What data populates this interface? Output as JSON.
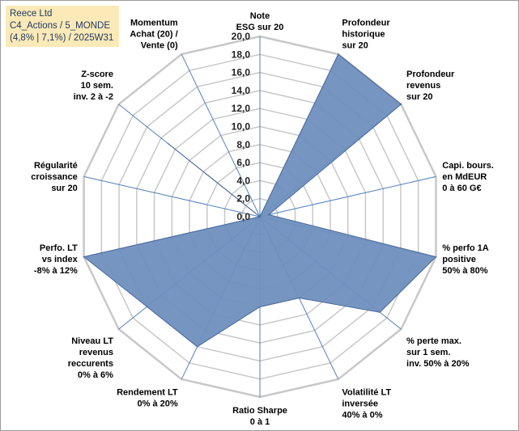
{
  "title": {
    "line1": "Reece Ltd",
    "line2": "C4_Actions / 5_MONDE",
    "line3": "(4,8% | 7,1%) / 2025W31"
  },
  "chart_data": {
    "type": "radar",
    "rmin": 0,
    "rmax": 20,
    "tick_step": 2,
    "tick_labels": [
      "0,0",
      "2,0",
      "4,0",
      "6,0",
      "8,0",
      "10,0",
      "12,0",
      "14,0",
      "16,0",
      "18,0",
      "20,0"
    ],
    "axes": [
      {
        "label": [
          "Note",
          "ESG sur 20"
        ],
        "value": 0
      },
      {
        "label": [
          "Profondeur",
          "historique",
          "sur 20"
        ],
        "value": 20
      },
      {
        "label": [
          "Profondeur",
          "revenus",
          "sur 20"
        ],
        "value": 20
      },
      {
        "label": [
          "Capi. bours.",
          "en MdEUR",
          "0 à 60 G€"
        ],
        "value": 1
      },
      {
        "label": [
          "% perfo 1A",
          "positive",
          "50% à 80%"
        ],
        "value": 20
      },
      {
        "label": [
          "% perte max.",
          "sur 1 sem.",
          "inv. 50% à 20%"
        ],
        "value": 17
      },
      {
        "label": [
          "Volatilité LT",
          "inversée",
          "40% à 0%"
        ],
        "value": 10
      },
      {
        "label": [
          "Ratio Sharpe",
          "0 à 1"
        ],
        "value": 10
      },
      {
        "label": [
          "Rendement LT",
          "0% à 20%"
        ],
        "value": 16
      },
      {
        "label": [
          "Niveau LT",
          "revenus",
          "reccurents",
          "0% à 6%"
        ],
        "value": 16
      },
      {
        "label": [
          "Perfo. LT",
          "vs index",
          "-8% à 12%"
        ],
        "value": 20
      },
      {
        "label": [
          "Régularité",
          "croissance",
          "sur 20"
        ],
        "value": 0
      },
      {
        "label": [
          "Z-score",
          "10 sem.",
          "inv. 2 à -2"
        ],
        "value": 13
      },
      {
        "label": [
          "Momentum",
          "Achat (20) /",
          "Vente (0)"
        ],
        "value": 0
      }
    ],
    "grid": true,
    "colors": {
      "fill": "#6f8fbe",
      "stroke": "#4a6a9c",
      "grid": "#c8c8c8",
      "spoke": "#4f81bd"
    }
  }
}
